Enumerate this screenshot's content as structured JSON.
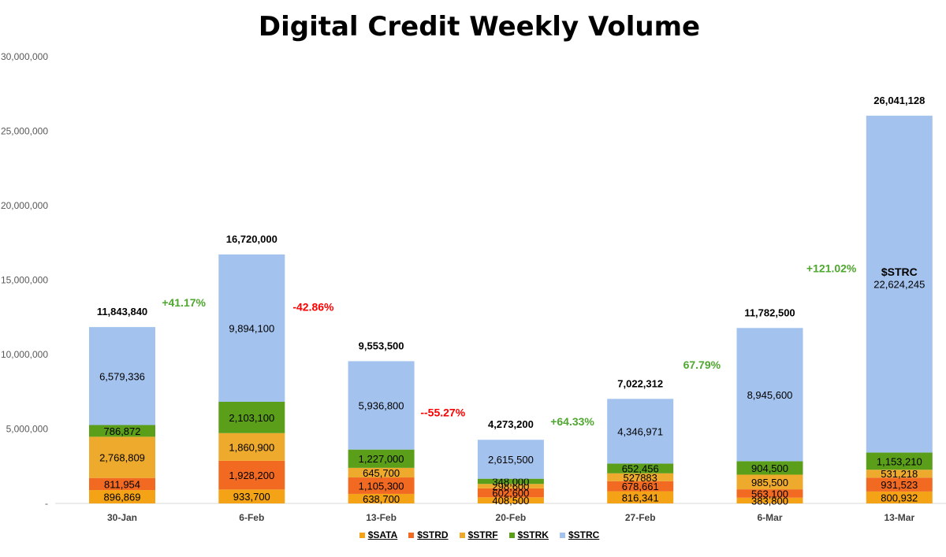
{
  "chart_data": {
    "type": "bar",
    "stacked": true,
    "title": "Digital Credit Weekly Volume",
    "xlabel": "",
    "ylabel": "",
    "ylim": [
      0,
      30000000
    ],
    "yticks": [
      "-",
      "5,000,000",
      "10,000,000",
      "15,000,000",
      "20,000,000",
      "25,000,000",
      "30,000,000"
    ],
    "categories": [
      "30-Jan",
      "6-Feb",
      "13-Feb",
      "20-Feb",
      "27-Feb",
      "6-Mar",
      "13-Mar"
    ],
    "series": [
      {
        "name": "$SATA",
        "color": "#F5A316",
        "values": [
          896869,
          933700,
          638700,
          408500,
          816341,
          383800,
          800932
        ],
        "labels": [
          "896,869",
          "933,700",
          "638,700",
          "408,500",
          "816,341",
          "383,800",
          "800,932"
        ]
      },
      {
        "name": "$STRD",
        "color": "#F26A21",
        "values": [
          811954,
          1928200,
          1105300,
          602600,
          678661,
          563100,
          931523
        ],
        "labels": [
          "811,954",
          "1,928,200",
          "1,105,300",
          "602,600",
          "678,661",
          "563,100",
          "931,523"
        ]
      },
      {
        "name": "$STRF",
        "color": "#EEAA2C",
        "values": [
          2768809,
          1860900,
          645700,
          298600,
          527883,
          985500,
          531218
        ],
        "labels": [
          "2,768,809",
          "1,860,900",
          "645,700",
          "298,600",
          "527883",
          "985,500",
          "531,218"
        ]
      },
      {
        "name": "$STRK",
        "color": "#5A9E1A",
        "values": [
          786872,
          2103100,
          1227000,
          348000,
          652456,
          904500,
          1153210
        ],
        "labels": [
          "786,872",
          "2,103,100",
          "1,227,000",
          "348,000",
          "652,456",
          "904,500",
          "1,153,210"
        ]
      },
      {
        "name": "$STRC",
        "color": "#A3C2EE",
        "values": [
          6579336,
          9894100,
          5936800,
          2615500,
          4346971,
          8945600,
          22624245
        ],
        "labels": [
          "6,579,336",
          "9,894,100",
          "5,936,800",
          "2,615,500",
          "4,346,971",
          "8,945,600",
          "22,624,245"
        ]
      }
    ],
    "totals": [
      11843840,
      16720000,
      9553500,
      4273200,
      7022312,
      11782500,
      26041128
    ],
    "total_labels": [
      "11,843,840",
      "16,720,000",
      "9,553,500",
      "4,273,200",
      "7,022,312",
      "11,782,500",
      "26,041,128"
    ],
    "changes": [
      {
        "text": "+41.17%",
        "color": "#4EA72E",
        "y_value": 13500000
      },
      {
        "text": "-42.86%",
        "color": "#FF0000",
        "y_value": 13200000
      },
      {
        "text": "--55.27%",
        "color": "#FF0000",
        "y_value": 6100000
      },
      {
        "text": "+64.33%",
        "color": "#4EA72E",
        "y_value": 5500000
      },
      {
        "text": "67.79%",
        "color": "#4EA72E",
        "y_value": 9300000
      },
      {
        "text": "+121.02%",
        "color": "#4EA72E",
        "y_value": 15800000
      }
    ],
    "annotation": {
      "text": "$STRC",
      "category": "13-Mar",
      "y_value": 15300000
    },
    "legend_position": "bottom",
    "grid": false
  }
}
